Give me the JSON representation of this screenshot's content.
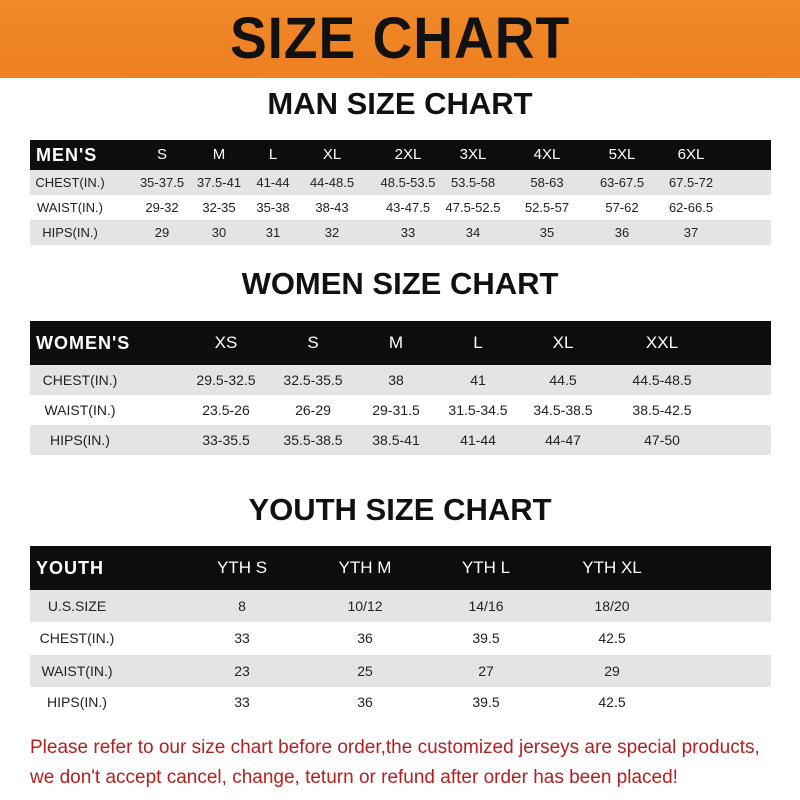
{
  "banner_title": "SIZE CHART",
  "men": {
    "title": "MAN SIZE CHART",
    "header": [
      "MEN'S",
      "S",
      "M",
      "L",
      "XL",
      "2XL",
      "3XL",
      "4XL",
      "5XL",
      "6XL"
    ],
    "rows": [
      [
        "CHEST(IN.)",
        "35-37.5",
        "37.5-41",
        "41-44",
        "44-48.5",
        "48.5-53.5",
        "53.5-58",
        "58-63",
        "63-67.5",
        "67.5-72"
      ],
      [
        "WAIST(IN.)",
        "29-32",
        "32-35",
        "35-38",
        "38-43",
        "43-47.5",
        "47.5-52.5",
        "52.5-57",
        "57-62",
        "62-66.5"
      ],
      [
        "HIPS(IN.)",
        "29",
        "30",
        "31",
        "32",
        "33",
        "34",
        "35",
        "36",
        "37"
      ]
    ]
  },
  "women": {
    "title": "WOMEN SIZE CHART",
    "header": [
      "WOMEN'S",
      "XS",
      "S",
      "M",
      "L",
      "XL",
      "XXL"
    ],
    "rows": [
      [
        "CHEST(IN.)",
        "29.5-32.5",
        "32.5-35.5",
        "38",
        "41",
        "44.5",
        "44.5-48.5"
      ],
      [
        "WAIST(IN.)",
        "23.5-26",
        "26-29",
        "29-31.5",
        "31.5-34.5",
        "34.5-38.5",
        "38.5-42.5"
      ],
      [
        "HIPS(IN.)",
        "33-35.5",
        "35.5-38.5",
        "38.5-41",
        "41-44",
        "44-47",
        "47-50"
      ]
    ]
  },
  "youth": {
    "title": "YOUTH SIZE CHART",
    "header": [
      "YOUTH",
      "YTH S",
      "YTH M",
      "YTH L",
      "YTH XL"
    ],
    "rows": [
      [
        "U.S.SIZE",
        "8",
        "10/12",
        "14/16",
        "18/20"
      ],
      [
        "CHEST(IN.)",
        "33",
        "36",
        "39.5",
        "42.5"
      ],
      [
        "WAIST(IN.)",
        "23",
        "25",
        "27",
        "29"
      ],
      [
        "HIPS(IN.)",
        "33",
        "36",
        "39.5",
        "42.5"
      ]
    ]
  },
  "notice": [
    "Please refer to our size chart before order,the customized jerseys are special products,",
    "we don't accept cancel, change, teturn or refund after order has been placed!"
  ],
  "colors": {
    "banner": "#ef8424",
    "header_row": "#0d0d0d",
    "stripe": "#e4e4e4",
    "notice": "#b3201f"
  }
}
